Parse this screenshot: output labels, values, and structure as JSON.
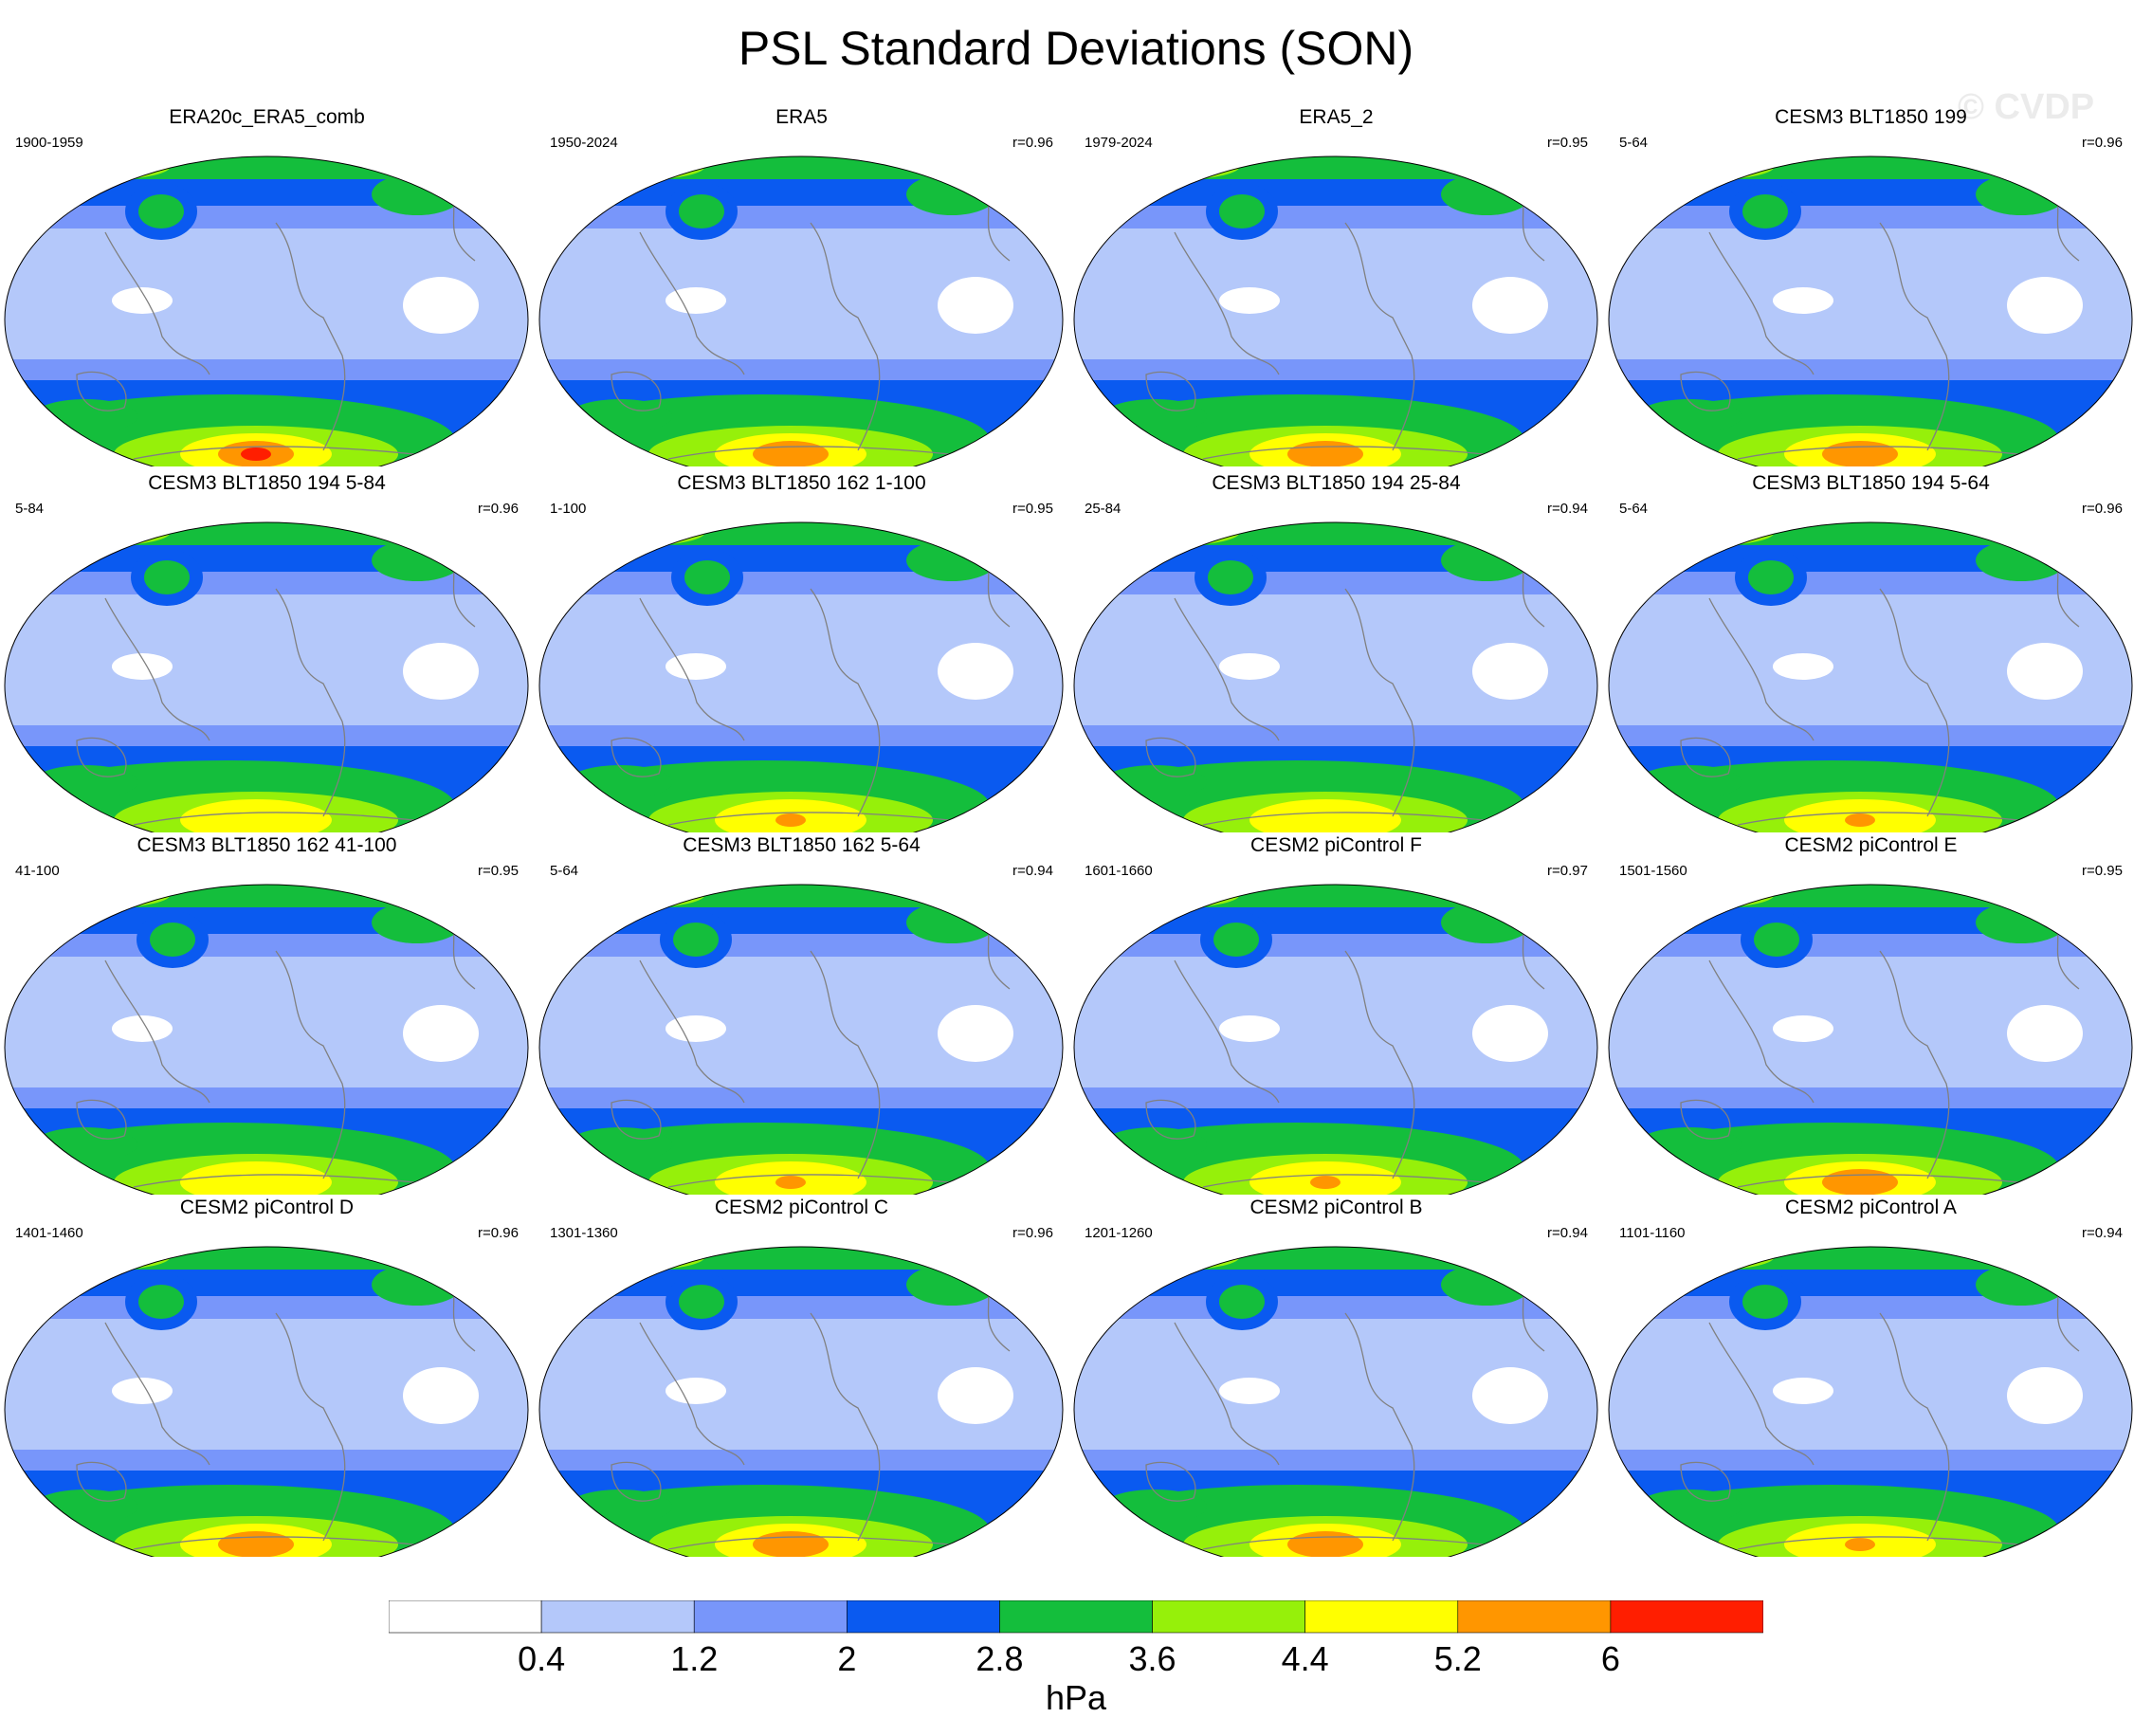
{
  "title": "PSL Standard Deviations (SON)",
  "watermark": "© CVDP",
  "units": "hPa",
  "colorbar": {
    "labels": [
      "0.4",
      "1.2",
      "2",
      "2.8",
      "3.6",
      "4.4",
      "5.2",
      "6"
    ],
    "colors": [
      "#ffffff",
      "#b4c8fa",
      "#7896fa",
      "#0a5af0",
      "#14be3c",
      "#96f00a",
      "#ffff00",
      "#ff9600",
      "#ff1e00"
    ]
  },
  "panels": [
    {
      "title": "ERA20c_ERA5_comb",
      "years": "1900-1959",
      "r": "",
      "max": 6.3,
      "south_peak": 5.8
    },
    {
      "title": "ERA5",
      "years": "1950-2024",
      "r": "r=0.96",
      "max": 5.4,
      "south_peak": 5.3
    },
    {
      "title": "ERA5_2",
      "years": "1979-2024",
      "r": "r=0.95",
      "max": 5.4,
      "south_peak": 5.3
    },
    {
      "title": "CESM3 BLT1850 199",
      "years": "5-64",
      "r": "r=0.96",
      "max": 5.5,
      "south_peak": 5.4
    },
    {
      "title": "CESM3 BLT1850 194 5-84",
      "years": "5-84",
      "r": "r=0.96",
      "max": 4.6,
      "south_peak": 4.5
    },
    {
      "title": "CESM3 BLT1850 162 1-100",
      "years": "1-100",
      "r": "r=0.95",
      "max": 5.3,
      "south_peak": 4.6
    },
    {
      "title": "CESM3 BLT1850 194 25-84",
      "years": "25-84",
      "r": "r=0.94",
      "max": 4.6,
      "south_peak": 4.5
    },
    {
      "title": "CESM3 BLT1850 194 5-64",
      "years": "5-64",
      "r": "r=0.96",
      "max": 5.3,
      "south_peak": 5.0
    },
    {
      "title": "CESM3 BLT1850 162 41-100",
      "years": "41-100",
      "r": "r=0.95",
      "max": 4.6,
      "south_peak": 4.5
    },
    {
      "title": "CESM3 BLT1850 162 5-64",
      "years": "5-64",
      "r": "r=0.94",
      "max": 5.4,
      "south_peak": 4.6
    },
    {
      "title": "CESM2 piControl F",
      "years": "1601-1660",
      "r": "r=0.97",
      "max": 5.3,
      "south_peak": 5.0
    },
    {
      "title": "CESM2 piControl E",
      "years": "1501-1560",
      "r": "r=0.95",
      "max": 5.4,
      "south_peak": 5.3
    },
    {
      "title": "CESM2 piControl D",
      "years": "1401-1460",
      "r": "r=0.96",
      "max": 5.4,
      "south_peak": 5.3
    },
    {
      "title": "CESM2 piControl C",
      "years": "1301-1360",
      "r": "r=0.96",
      "max": 5.4,
      "south_peak": 5.3
    },
    {
      "title": "CESM2 piControl B",
      "years": "1201-1260",
      "r": "r=0.94",
      "max": 5.4,
      "south_peak": 5.3
    },
    {
      "title": "CESM2 piControl A",
      "years": "1101-1160",
      "r": "r=0.94",
      "max": 5.3,
      "south_peak": 5.0
    }
  ]
}
